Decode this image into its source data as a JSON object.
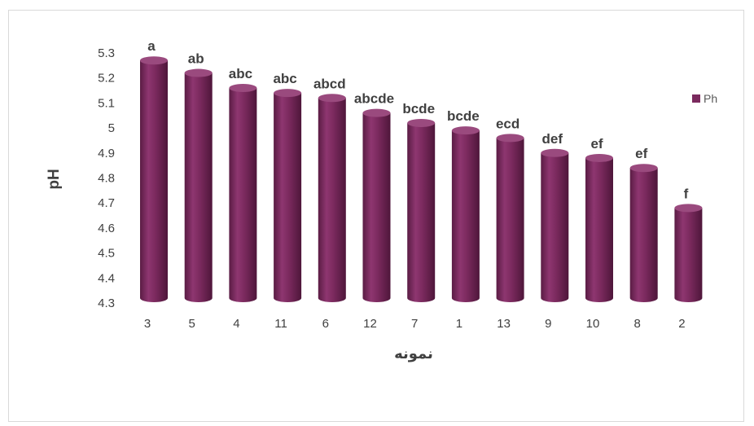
{
  "chart_data": {
    "type": "bar",
    "categories": [
      "3",
      "5",
      "4",
      "11",
      "6",
      "12",
      "7",
      "1",
      "13",
      "9",
      "10",
      "8",
      "2"
    ],
    "series": [
      {
        "name": "Ph",
        "values": [
          5.27,
          5.22,
          5.16,
          5.14,
          5.12,
          5.06,
          5.02,
          4.99,
          4.96,
          4.9,
          4.88,
          4.84,
          4.68
        ],
        "labels": [
          "a",
          "ab",
          "abc",
          "abc",
          "abcd",
          "abcde",
          "bcde",
          "bcde",
          "ecd",
          "def",
          "ef",
          "ef",
          "f"
        ]
      }
    ],
    "xlabel": "نمونه",
    "ylabel": "pH",
    "ylim": [
      4.3,
      5.3
    ],
    "yticks": [
      "4.3",
      "4.4",
      "4.5",
      "4.6",
      "4.7",
      "4.8",
      "4.9",
      "5",
      "5.1",
      "5.2",
      "5.3"
    ],
    "grid": false,
    "legend": "right",
    "bar_color": "#7b2a5e"
  }
}
